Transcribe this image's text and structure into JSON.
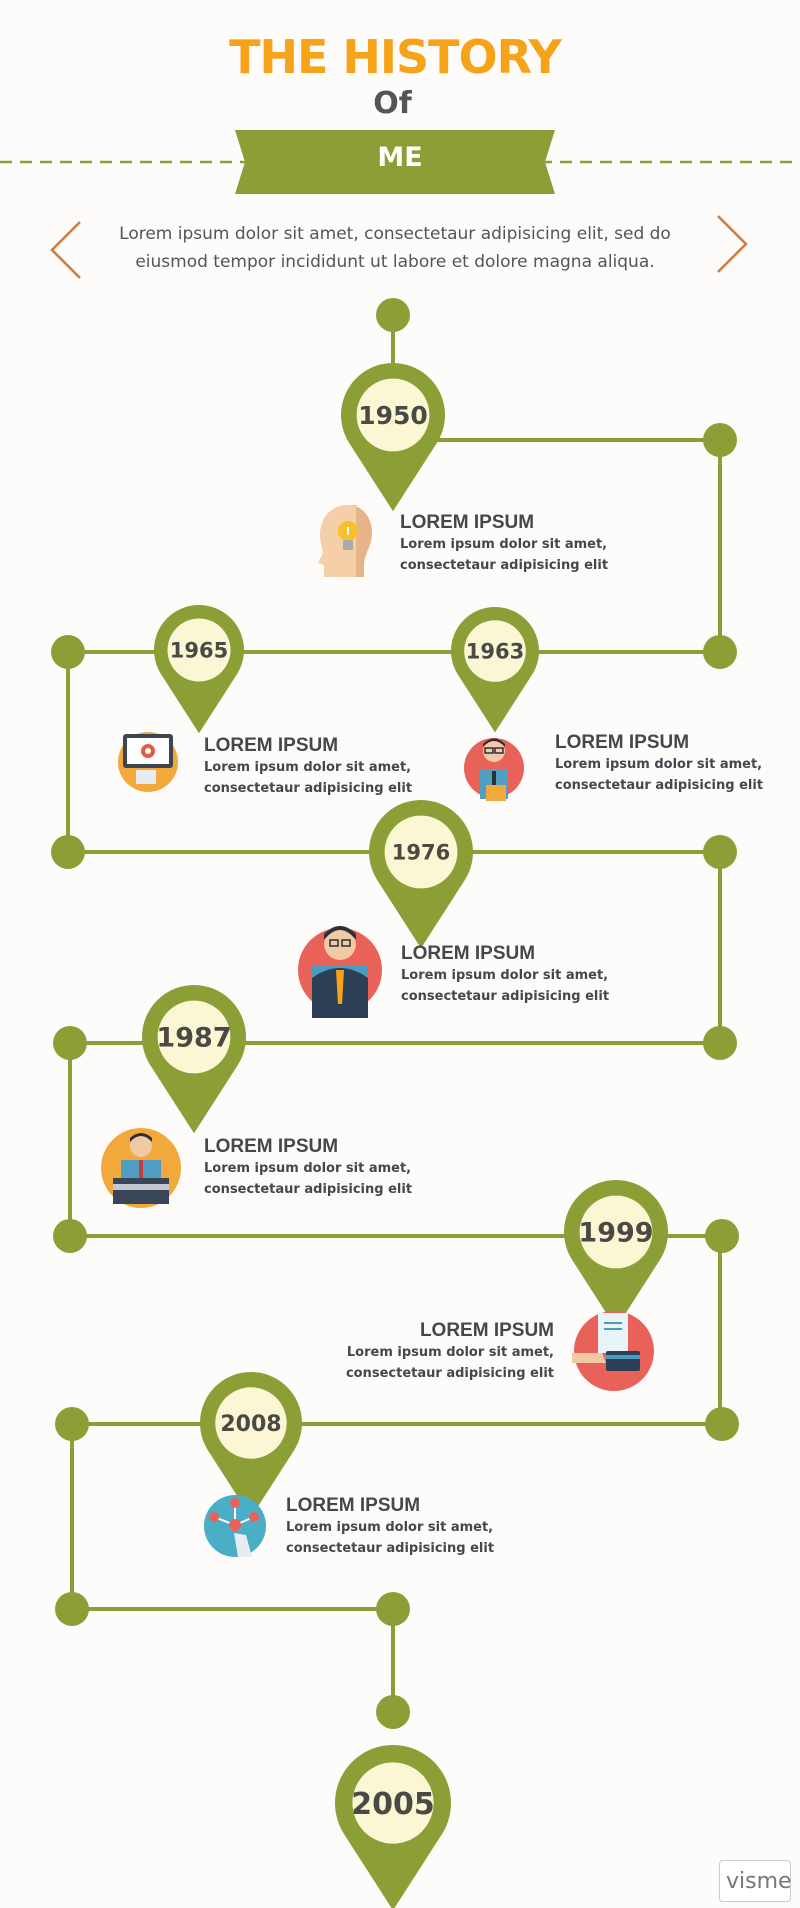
{
  "header": {
    "title": "THE HISTORY",
    "subtitle": "Of",
    "ribbon": "ME"
  },
  "intro": {
    "text": "Lorem ipsum dolor sit amet, consectetaur adipisicing elit, sed do eiusmod tempor incididunt ut labore et dolore magna aliqua."
  },
  "colors": {
    "accent_green": "#8c9e36",
    "title_orange": "#f6a31a",
    "arrow_orange": "#d2793a",
    "pin_inner": "#fbf6d4"
  },
  "timeline": [
    {
      "year": "1950",
      "title": "LOREM IPSUM",
      "desc1": "Lorem ipsum dolor sit amet,",
      "desc2": "consectetaur adipisicing elit",
      "icon": "lightbulb-head-icon"
    },
    {
      "year": "1965",
      "title": "LOREM IPSUM",
      "desc1": "Lorem ipsum dolor sit amet,",
      "desc2": "consectetaur adipisicing elit",
      "icon": "laptop-settings-icon"
    },
    {
      "year": "1963",
      "title": "LOREM IPSUM",
      "desc1": "Lorem ipsum dolor sit amet,",
      "desc2": "consectetaur adipisicing elit",
      "icon": "businessman-folder-icon"
    },
    {
      "year": "1976",
      "title": "LOREM IPSUM",
      "desc1": "Lorem ipsum dolor sit amet,",
      "desc2": "consectetaur adipisicing elit",
      "icon": "headset-operator-icon"
    },
    {
      "year": "1987",
      "title": "LOREM IPSUM",
      "desc1": "Lorem ipsum dolor sit amet,",
      "desc2": "consectetaur adipisicing elit",
      "icon": "speaker-podium-icon"
    },
    {
      "year": "1999",
      "title": "LOREM IPSUM",
      "desc1": "Lorem ipsum dolor sit amet,",
      "desc2": "consectetaur adipisicing elit",
      "icon": "card-payment-icon"
    },
    {
      "year": "2008",
      "title": "LOREM IPSUM",
      "desc1": "Lorem ipsum dolor sit amet,",
      "desc2": "consectetaur adipisicing elit",
      "icon": "network-hand-icon"
    },
    {
      "year": "2005"
    }
  ],
  "footer": {
    "logo": "visme"
  }
}
